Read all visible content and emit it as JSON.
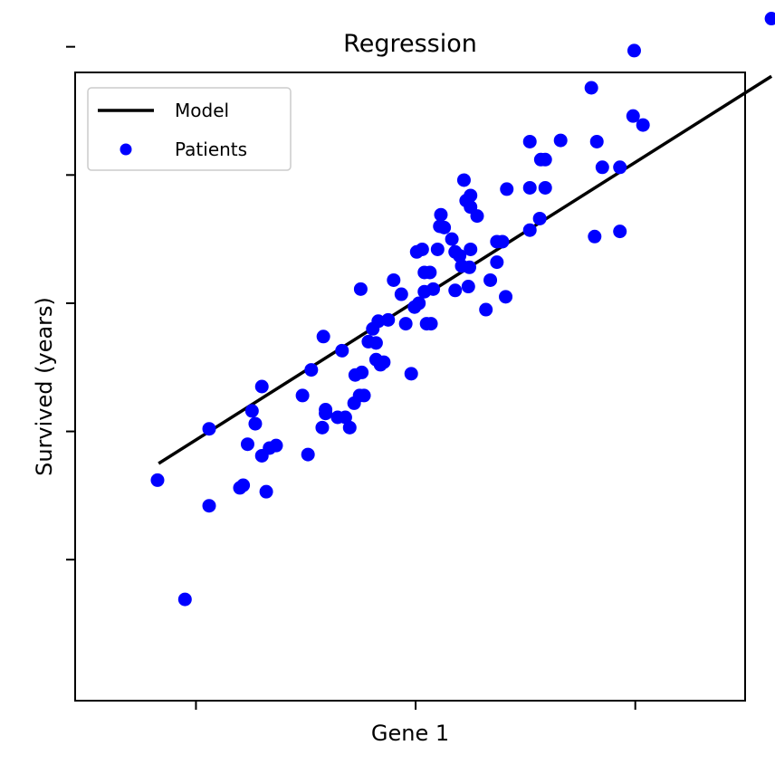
{
  "chart_data": {
    "type": "scatter",
    "title": "Regression",
    "xlabel": "Gene 1",
    "ylabel": "Survived (years)",
    "xlim": [
      -3.1,
      3.0
    ],
    "ylim": [
      -3.1,
      1.8
    ],
    "xticks": [
      -2,
      0,
      2
    ],
    "yticks": [
      -2,
      -1,
      0,
      1,
      2
    ],
    "show_tick_labels": false,
    "grid": false,
    "legend": {
      "placement": "top-left",
      "entries": [
        {
          "label": "Model",
          "kind": "line",
          "color": "#000000"
        },
        {
          "label": "Patients",
          "kind": "marker",
          "color": "#0000ff"
        }
      ]
    },
    "series": [
      {
        "name": "Model",
        "kind": "line",
        "color": "#000000",
        "x": [
          -2.34,
          3.24
        ],
        "y": [
          -1.25,
          1.77
        ]
      },
      {
        "name": "Patients",
        "kind": "scatter",
        "color": "#0000ff",
        "points": [
          [
            -2.35,
            -1.38
          ],
          [
            -2.1,
            -2.31
          ],
          [
            -1.88,
            -1.58
          ],
          [
            -1.88,
            -0.98
          ],
          [
            -1.6,
            -1.44
          ],
          [
            -1.57,
            -1.42
          ],
          [
            -1.53,
            -1.1
          ],
          [
            -1.49,
            -0.84
          ],
          [
            -1.46,
            -0.94
          ],
          [
            -1.4,
            -0.65
          ],
          [
            -1.4,
            -1.19
          ],
          [
            -1.36,
            -1.47
          ],
          [
            -1.33,
            -1.13
          ],
          [
            -1.27,
            -1.11
          ],
          [
            -1.03,
            -0.72
          ],
          [
            -0.98,
            -1.18
          ],
          [
            -0.95,
            -0.52
          ],
          [
            -0.85,
            -0.97
          ],
          [
            -0.84,
            -0.26
          ],
          [
            -0.82,
            -0.86
          ],
          [
            -0.82,
            -0.83
          ],
          [
            -0.71,
            -0.89
          ],
          [
            -0.67,
            -0.37
          ],
          [
            -0.64,
            -0.89
          ],
          [
            -0.6,
            -0.97
          ],
          [
            -0.56,
            -0.78
          ],
          [
            -0.55,
            -0.56
          ],
          [
            -0.51,
            -0.72
          ],
          [
            -0.5,
            0.11
          ],
          [
            -0.49,
            -0.54
          ],
          [
            -0.47,
            -0.72
          ],
          [
            -0.43,
            -0.3
          ],
          [
            -0.39,
            -0.2
          ],
          [
            -0.36,
            -0.44
          ],
          [
            -0.36,
            -0.31
          ],
          [
            -0.34,
            -0.14
          ],
          [
            -0.32,
            -0.48
          ],
          [
            -0.29,
            -0.46
          ],
          [
            -0.25,
            -0.13
          ],
          [
            -0.2,
            0.18
          ],
          [
            -0.13,
            0.07
          ],
          [
            -0.09,
            -0.16
          ],
          [
            -0.04,
            -0.55
          ],
          [
            -0.01,
            -0.03
          ],
          [
            0.01,
            0.4
          ],
          [
            0.03,
            0.0
          ],
          [
            0.06,
            0.42
          ],
          [
            0.08,
            0.24
          ],
          [
            0.08,
            0.09
          ],
          [
            0.1,
            -0.16
          ],
          [
            0.13,
            0.24
          ],
          [
            0.14,
            -0.16
          ],
          [
            0.16,
            0.11
          ],
          [
            0.2,
            0.42
          ],
          [
            0.22,
            0.6
          ],
          [
            0.23,
            0.69
          ],
          [
            0.26,
            0.59
          ],
          [
            0.33,
            0.5
          ],
          [
            0.36,
            0.4
          ],
          [
            0.36,
            0.1
          ],
          [
            0.4,
            0.37
          ],
          [
            0.42,
            0.29
          ],
          [
            0.44,
            0.96
          ],
          [
            0.46,
            0.8
          ],
          [
            0.48,
            0.13
          ],
          [
            0.49,
            0.28
          ],
          [
            0.5,
            0.84
          ],
          [
            0.5,
            0.42
          ],
          [
            0.5,
            0.75
          ],
          [
            0.56,
            0.68
          ],
          [
            0.64,
            -0.05
          ],
          [
            0.68,
            0.18
          ],
          [
            0.74,
            0.32
          ],
          [
            0.74,
            0.48
          ],
          [
            0.79,
            0.48
          ],
          [
            0.82,
            0.05
          ],
          [
            0.83,
            0.89
          ],
          [
            1.04,
            0.57
          ],
          [
            1.04,
            1.26
          ],
          [
            1.04,
            0.9
          ],
          [
            1.13,
            0.66
          ],
          [
            1.14,
            1.12
          ],
          [
            1.18,
            1.12
          ],
          [
            1.18,
            0.9
          ],
          [
            1.32,
            1.27
          ],
          [
            1.6,
            1.68
          ],
          [
            1.63,
            0.52
          ],
          [
            1.65,
            1.26
          ],
          [
            1.7,
            1.06
          ],
          [
            1.86,
            0.56
          ],
          [
            1.86,
            1.06
          ],
          [
            1.98,
            1.46
          ],
          [
            1.99,
            1.97
          ],
          [
            2.07,
            1.39
          ],
          [
            3.24,
            2.22
          ]
        ]
      }
    ]
  }
}
